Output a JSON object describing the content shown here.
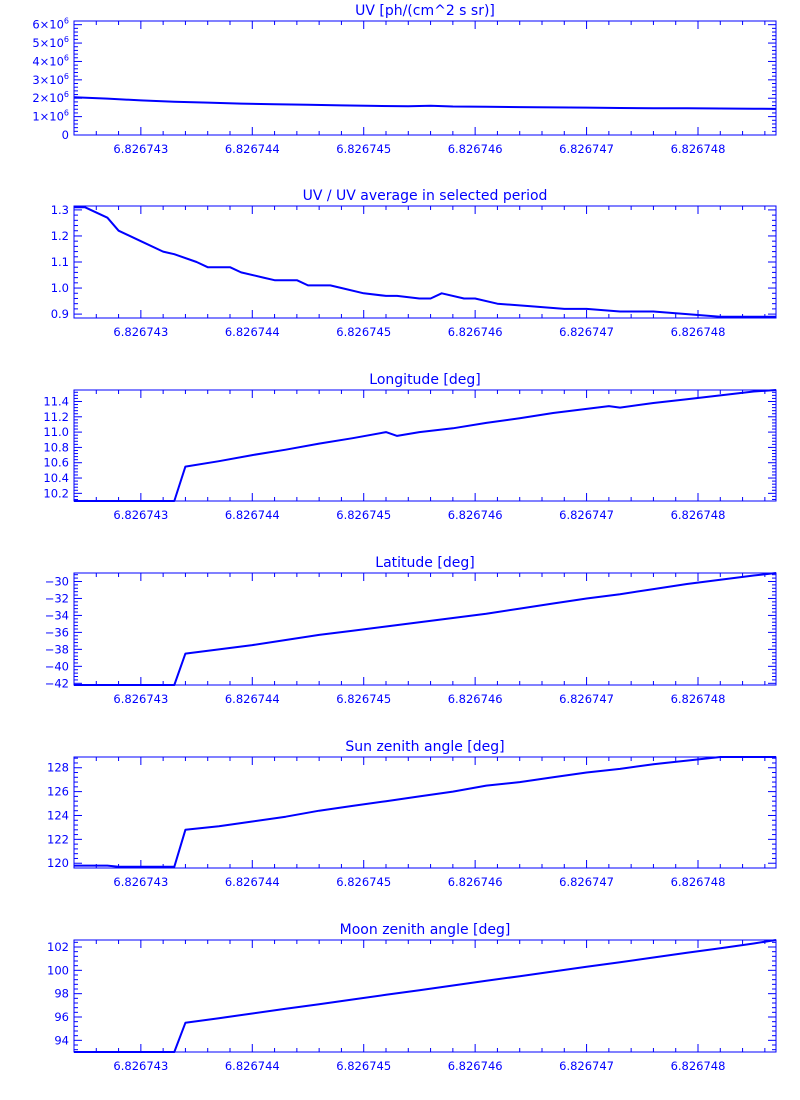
{
  "style": {
    "color": "#0000ff",
    "background": "#ffffff"
  },
  "chart_data": [
    {
      "type": "line",
      "title": "UV [ph/(cm^2 s sr)]",
      "xlabel": "",
      "ylabel": "",
      "xlim": [
        6.8267424,
        6.8267487
      ],
      "ylim": [
        0,
        6200000
      ],
      "x_ticks": [
        6.826743,
        6.826744,
        6.826745,
        6.826746,
        6.826747,
        6.826748
      ],
      "x_tick_labels": [
        "6.826743",
        "6.826744",
        "6.826745",
        "6.826746",
        "6.826747",
        "6.826748"
      ],
      "y_ticks": [
        0,
        1000000,
        2000000,
        3000000,
        4000000,
        5000000,
        6000000
      ],
      "y_tick_labels": [
        {
          "base": "0",
          "exp": ""
        },
        {
          "base": "1×10",
          "exp": "6"
        },
        {
          "base": "2×10",
          "exp": "6"
        },
        {
          "base": "3×10",
          "exp": "6"
        },
        {
          "base": "4×10",
          "exp": "6"
        },
        {
          "base": "5×10",
          "exp": "6"
        },
        {
          "base": "6×10",
          "exp": "6"
        }
      ],
      "series": [
        {
          "x": [
            6.8267424,
            6.8267427,
            6.826743,
            6.8267433,
            6.8267436,
            6.8267439,
            6.8267442,
            6.8267445,
            6.8267448,
            6.8267451,
            6.8267454,
            6.8267456,
            6.8267458,
            6.8267461,
            6.8267464,
            6.8267467,
            6.826747,
            6.8267473,
            6.8267476,
            6.8267479,
            6.8267482,
            6.8267485,
            6.8267487
          ],
          "y": [
            2050000,
            1980000,
            1880000,
            1810000,
            1760000,
            1710000,
            1670000,
            1640000,
            1610000,
            1580000,
            1560000,
            1590000,
            1550000,
            1540000,
            1520000,
            1500000,
            1490000,
            1470000,
            1460000,
            1450000,
            1440000,
            1430000,
            1420000
          ]
        }
      ]
    },
    {
      "type": "line",
      "title": "UV / UV average in selected period",
      "xlabel": "",
      "ylabel": "",
      "xlim": [
        6.8267424,
        6.8267487
      ],
      "ylim": [
        0.885,
        1.315
      ],
      "x_ticks": [
        6.826743,
        6.826744,
        6.826745,
        6.826746,
        6.826747,
        6.826748
      ],
      "x_tick_labels": [
        "6.826743",
        "6.826744",
        "6.826745",
        "6.826746",
        "6.826747",
        "6.826748"
      ],
      "y_ticks": [
        0.9,
        1.0,
        1.1,
        1.2,
        1.3
      ],
      "y_tick_labels": [
        {
          "base": "0.9",
          "exp": ""
        },
        {
          "base": "1.0",
          "exp": ""
        },
        {
          "base": "1.1",
          "exp": ""
        },
        {
          "base": "1.2",
          "exp": ""
        },
        {
          "base": "1.3",
          "exp": ""
        }
      ],
      "series": [
        {
          "x": [
            6.8267424,
            6.8267425,
            6.8267427,
            6.8267428,
            6.826743,
            6.8267432,
            6.8267433,
            6.8267435,
            6.8267436,
            6.8267438,
            6.8267439,
            6.8267441,
            6.8267442,
            6.8267444,
            6.8267445,
            6.8267447,
            6.8267448,
            6.826745,
            6.8267452,
            6.8267453,
            6.8267455,
            6.8267456,
            6.8267457,
            6.8267459,
            6.826746,
            6.8267462,
            6.8267465,
            6.8267468,
            6.826747,
            6.8267473,
            6.8267476,
            6.8267479,
            6.8267482,
            6.8267485,
            6.8267487
          ],
          "y": [
            1.31,
            1.31,
            1.27,
            1.22,
            1.18,
            1.14,
            1.13,
            1.1,
            1.08,
            1.08,
            1.06,
            1.04,
            1.03,
            1.03,
            1.01,
            1.01,
            1.0,
            0.98,
            0.97,
            0.97,
            0.96,
            0.96,
            0.98,
            0.96,
            0.96,
            0.94,
            0.93,
            0.92,
            0.92,
            0.91,
            0.91,
            0.9,
            0.89,
            0.89,
            0.89
          ]
        }
      ]
    },
    {
      "type": "line",
      "title": "Longitude [deg]",
      "xlabel": "",
      "ylabel": "",
      "xlim": [
        6.8267424,
        6.8267487
      ],
      "ylim": [
        10.1,
        11.55
      ],
      "x_ticks": [
        6.826743,
        6.826744,
        6.826745,
        6.826746,
        6.826747,
        6.826748
      ],
      "x_tick_labels": [
        "6.826743",
        "6.826744",
        "6.826745",
        "6.826746",
        "6.826747",
        "6.826748"
      ],
      "y_ticks": [
        10.2,
        10.4,
        10.6,
        10.8,
        11.0,
        11.2,
        11.4
      ],
      "y_tick_labels": [
        {
          "base": "10.2",
          "exp": ""
        },
        {
          "base": "10.4",
          "exp": ""
        },
        {
          "base": "10.6",
          "exp": ""
        },
        {
          "base": "10.8",
          "exp": ""
        },
        {
          "base": "11.0",
          "exp": ""
        },
        {
          "base": "11.2",
          "exp": ""
        },
        {
          "base": "11.4",
          "exp": ""
        }
      ],
      "series": [
        {
          "x": [
            6.8267424,
            6.8267433,
            6.8267434,
            6.8267437,
            6.826744,
            6.8267443,
            6.8267446,
            6.8267449,
            6.8267452,
            6.8267453,
            6.8267455,
            6.8267458,
            6.8267461,
            6.8267464,
            6.8267467,
            6.8267472,
            6.8267473,
            6.8267476,
            6.8267479,
            6.8267482,
            6.8267485,
            6.8267487
          ],
          "y": [
            10.1,
            10.1,
            10.55,
            10.62,
            10.7,
            10.77,
            10.85,
            10.92,
            11.0,
            10.95,
            11.0,
            11.05,
            11.12,
            11.18,
            11.25,
            11.34,
            11.32,
            11.38,
            11.43,
            11.48,
            11.53,
            11.55
          ]
        }
      ]
    },
    {
      "type": "line",
      "title": "Latitude [deg]",
      "xlabel": "",
      "ylabel": "",
      "xlim": [
        6.8267424,
        6.8267487
      ],
      "ylim": [
        -42.2,
        -29.0
      ],
      "x_ticks": [
        6.826743,
        6.826744,
        6.826745,
        6.826746,
        6.826747,
        6.826748
      ],
      "x_tick_labels": [
        "6.826743",
        "6.826744",
        "6.826745",
        "6.826746",
        "6.826747",
        "6.826748"
      ],
      "y_ticks": [
        -42,
        -40,
        -38,
        -36,
        -34,
        -32,
        -30
      ],
      "y_tick_labels": [
        {
          "base": "−42",
          "exp": ""
        },
        {
          "base": "−40",
          "exp": ""
        },
        {
          "base": "−38",
          "exp": ""
        },
        {
          "base": "−36",
          "exp": ""
        },
        {
          "base": "−34",
          "exp": ""
        },
        {
          "base": "−32",
          "exp": ""
        },
        {
          "base": "−30",
          "exp": ""
        }
      ],
      "series": [
        {
          "x": [
            6.8267424,
            6.8267433,
            6.8267434,
            6.8267437,
            6.826744,
            6.8267443,
            6.8267446,
            6.8267449,
            6.8267452,
            6.8267455,
            6.8267458,
            6.8267461,
            6.8267464,
            6.8267467,
            6.826747,
            6.8267473,
            6.8267476,
            6.8267479,
            6.8267482,
            6.8267485,
            6.8267487
          ],
          "y": [
            -42.2,
            -42.2,
            -38.5,
            -38.0,
            -37.5,
            -36.9,
            -36.3,
            -35.8,
            -35.3,
            -34.8,
            -34.3,
            -33.8,
            -33.2,
            -32.6,
            -32.0,
            -31.5,
            -30.9,
            -30.3,
            -29.8,
            -29.3,
            -29.0
          ]
        }
      ]
    },
    {
      "type": "line",
      "title": "Sun zenith angle [deg]",
      "xlabel": "",
      "ylabel": "",
      "xlim": [
        6.8267424,
        6.8267487
      ],
      "ylim": [
        119.6,
        128.9
      ],
      "x_ticks": [
        6.826743,
        6.826744,
        6.826745,
        6.826746,
        6.826747,
        6.826748
      ],
      "x_tick_labels": [
        "6.826743",
        "6.826744",
        "6.826745",
        "6.826746",
        "6.826747",
        "6.826748"
      ],
      "y_ticks": [
        120,
        122,
        124,
        126,
        128
      ],
      "y_tick_labels": [
        {
          "base": "120",
          "exp": ""
        },
        {
          "base": "122",
          "exp": ""
        },
        {
          "base": "124",
          "exp": ""
        },
        {
          "base": "126",
          "exp": ""
        },
        {
          "base": "128",
          "exp": ""
        }
      ],
      "series": [
        {
          "x": [
            6.8267424,
            6.8267427,
            6.8267428,
            6.8267433,
            6.8267434,
            6.8267437,
            6.826744,
            6.8267443,
            6.8267446,
            6.8267449,
            6.8267452,
            6.8267455,
            6.8267458,
            6.8267461,
            6.8267464,
            6.8267467,
            6.826747,
            6.8267473,
            6.8267476,
            6.8267479,
            6.8267482,
            6.8267485,
            6.8267487
          ],
          "y": [
            119.8,
            119.8,
            119.7,
            119.7,
            122.8,
            123.1,
            123.5,
            123.9,
            124.4,
            124.8,
            125.2,
            125.6,
            126.0,
            126.5,
            126.8,
            127.2,
            127.6,
            127.9,
            128.3,
            128.6,
            128.9,
            129.2,
            129.4
          ]
        }
      ]
    },
    {
      "type": "line",
      "title": "Moon zenith angle [deg]",
      "xlabel": "",
      "ylabel": "",
      "xlim": [
        6.8267424,
        6.8267487
      ],
      "ylim": [
        93.0,
        102.6
      ],
      "x_ticks": [
        6.826743,
        6.826744,
        6.826745,
        6.826746,
        6.826747,
        6.826748
      ],
      "x_tick_labels": [
        "6.826743",
        "6.826744",
        "6.826745",
        "6.826746",
        "6.826747",
        "6.826748"
      ],
      "y_ticks": [
        94,
        96,
        98,
        100,
        102
      ],
      "y_tick_labels": [
        {
          "base": "94",
          "exp": ""
        },
        {
          "base": "96",
          "exp": ""
        },
        {
          "base": "98",
          "exp": ""
        },
        {
          "base": "100",
          "exp": ""
        },
        {
          "base": "102",
          "exp": ""
        }
      ],
      "series": [
        {
          "x": [
            6.8267424,
            6.8267433,
            6.8267434,
            6.8267437,
            6.826744,
            6.8267443,
            6.8267446,
            6.8267449,
            6.8267452,
            6.8267455,
            6.8267458,
            6.8267461,
            6.8267464,
            6.8267467,
            6.826747,
            6.8267473,
            6.8267476,
            6.8267479,
            6.8267482,
            6.8267485,
            6.8267487
          ],
          "y": [
            93.0,
            93.0,
            95.5,
            95.9,
            96.3,
            96.7,
            97.1,
            97.5,
            97.9,
            98.3,
            98.7,
            99.1,
            99.5,
            99.9,
            100.3,
            100.7,
            101.1,
            101.5,
            101.9,
            102.3,
            102.6
          ]
        }
      ]
    }
  ]
}
